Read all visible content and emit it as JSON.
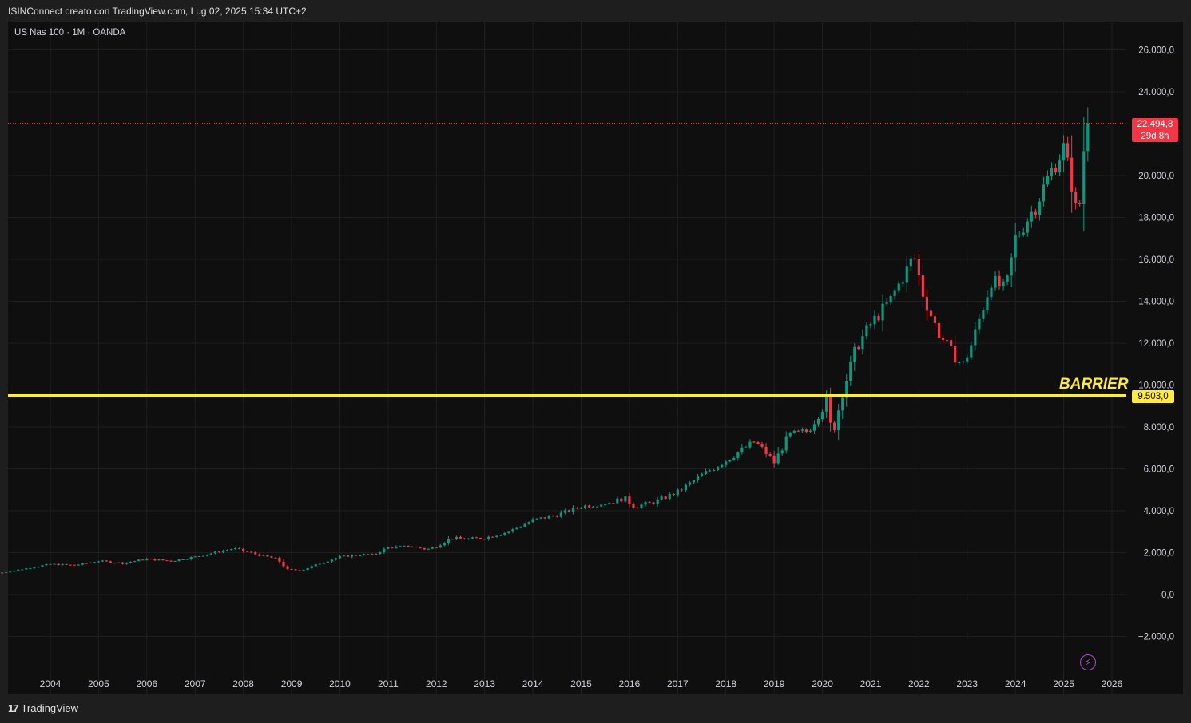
{
  "header": {
    "caption": "ISINConnect creato con TradingView.com, Lug 02, 2025 15:34 UTC+2",
    "symbol": "US Nas 100 · 1M · OANDA"
  },
  "footer": {
    "logo": "𝟭𝟳",
    "brand": "TradingView"
  },
  "current_price": {
    "price": "22.494,8",
    "countdown": "29d 8h"
  },
  "barrier": {
    "label": "BARRIER",
    "price_label": "9.503,0",
    "value": 9503
  },
  "colors": {
    "up": "#089981",
    "down": "#f23645",
    "barrier": "#ffeb3b",
    "background": "#0f0f0f",
    "grid": "#1f1f1f"
  },
  "icons": {
    "bolt": "lightning-bolt-icon"
  },
  "chart_data": {
    "type": "candlestick",
    "interval": "1M",
    "ylim": [
      -2800,
      26800
    ],
    "y_ticks": [
      {
        "value": 26000,
        "label": "26.000,0"
      },
      {
        "value": 24000,
        "label": "24.000,0"
      },
      {
        "value": 20000,
        "label": "20.000,0"
      },
      {
        "value": 18000,
        "label": "18.000,0"
      },
      {
        "value": 16000,
        "label": "16.000,0"
      },
      {
        "value": 14000,
        "label": "14.000,0"
      },
      {
        "value": 12000,
        "label": "12.000,0"
      },
      {
        "value": 10000,
        "label": "10.000,0"
      },
      {
        "value": 8000,
        "label": "8.000,0"
      },
      {
        "value": 6000,
        "label": "6.000,0"
      },
      {
        "value": 4000,
        "label": "4.000,0"
      },
      {
        "value": 2000,
        "label": "2.000,0"
      },
      {
        "value": 0,
        "label": "0,0"
      },
      {
        "value": -2000,
        "label": "−2.000,0"
      }
    ],
    "x_ticks": [
      "2004",
      "2005",
      "2006",
      "2007",
      "2008",
      "2009",
      "2010",
      "2011",
      "2012",
      "2013",
      "2014",
      "2015",
      "2016",
      "2017",
      "2018",
      "2019",
      "2020",
      "2021",
      "2022",
      "2023",
      "2024",
      "2025",
      "2026"
    ],
    "x_start_year": 2003.0,
    "x_end_year": 2026.5,
    "grid": true,
    "anchors": [
      [
        2003.0,
        1050
      ],
      [
        2004.0,
        1450
      ],
      [
        2004.5,
        1400
      ],
      [
        2005.0,
        1600
      ],
      [
        2005.5,
        1500
      ],
      [
        2006.0,
        1700
      ],
      [
        2006.5,
        1600
      ],
      [
        2007.0,
        1800
      ],
      [
        2007.8,
        2200
      ],
      [
        2008.3,
        1900
      ],
      [
        2008.7,
        1700
      ],
      [
        2008.9,
        1200
      ],
      [
        2009.2,
        1150
      ],
      [
        2009.6,
        1500
      ],
      [
        2010.0,
        1800
      ],
      [
        2010.4,
        1900
      ],
      [
        2010.7,
        1900
      ],
      [
        2011.0,
        2250
      ],
      [
        2011.5,
        2300
      ],
      [
        2011.8,
        2150
      ],
      [
        2012.0,
        2300
      ],
      [
        2012.3,
        2700
      ],
      [
        2012.6,
        2650
      ],
      [
        2013.0,
        2700
      ],
      [
        2013.5,
        3000
      ],
      [
        2014.0,
        3550
      ],
      [
        2014.5,
        3800
      ],
      [
        2015.0,
        4200
      ],
      [
        2015.6,
        4400
      ],
      [
        2015.9,
        4600
      ],
      [
        2016.1,
        4200
      ],
      [
        2016.5,
        4400
      ],
      [
        2017.0,
        4900
      ],
      [
        2017.5,
        5700
      ],
      [
        2018.0,
        6400
      ],
      [
        2018.6,
        7300
      ],
      [
        2018.9,
        6600
      ],
      [
        2019.0,
        6300
      ],
      [
        2019.3,
        7600
      ],
      [
        2019.7,
        7800
      ],
      [
        2020.0,
        8900
      ],
      [
        2020.1,
        9300
      ],
      [
        2020.2,
        7500
      ],
      [
        2020.4,
        9500
      ],
      [
        2020.7,
        11800
      ],
      [
        2021.0,
        12900
      ],
      [
        2021.4,
        14000
      ],
      [
        2021.7,
        15300
      ],
      [
        2021.9,
        16200
      ],
      [
        2022.1,
        14200
      ],
      [
        2022.4,
        12500
      ],
      [
        2022.7,
        11500
      ],
      [
        2022.9,
        10900
      ],
      [
        2023.1,
        12000
      ],
      [
        2023.5,
        15000
      ],
      [
        2023.8,
        14500
      ],
      [
        2024.0,
        17000
      ],
      [
        2024.4,
        18500
      ],
      [
        2024.8,
        20500
      ],
      [
        2025.0,
        21300
      ],
      [
        2025.2,
        19300
      ],
      [
        2025.3,
        17500
      ],
      [
        2025.4,
        21000
      ],
      [
        2025.5,
        22494.8
      ]
    ]
  }
}
